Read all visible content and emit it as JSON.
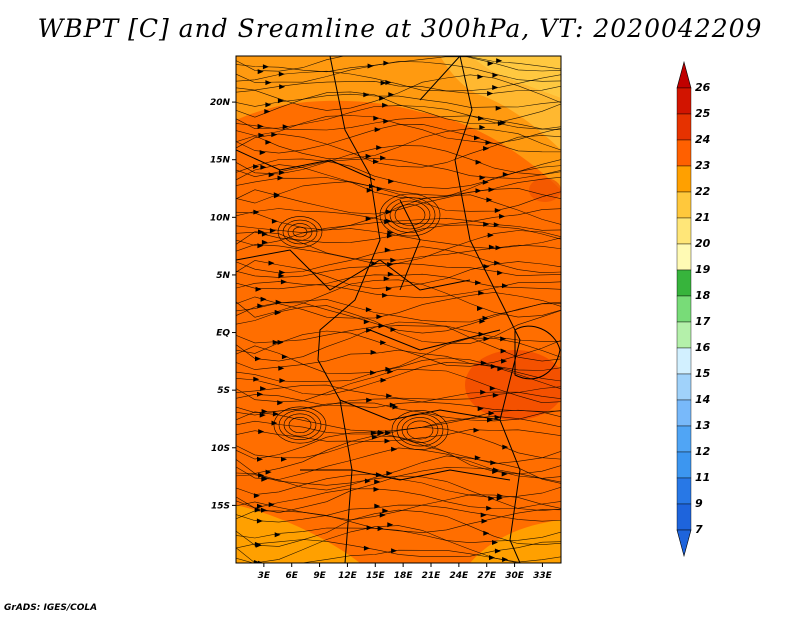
{
  "title": "WBPT [C] and Sreamline at 300hPa, VT: 2020042209",
  "credit": "GrADS: IGES/COLA",
  "chart_data": {
    "type": "heatmap",
    "title": "WBPT [C] and Sreamline at 300hPa, VT: 2020042209",
    "variable": "Wet-bulb potential temperature",
    "units": "C",
    "level": "300hPa",
    "valid_time": "2020042209",
    "overlay": "streamlines",
    "lon_range": [
      0,
      35
    ],
    "lat_range": [
      -20,
      24
    ],
    "x_ticks": [
      {
        "label": "3E",
        "lon": 3
      },
      {
        "label": "6E",
        "lon": 6
      },
      {
        "label": "9E",
        "lon": 9
      },
      {
        "label": "12E",
        "lon": 12
      },
      {
        "label": "15E",
        "lon": 15
      },
      {
        "label": "18E",
        "lon": 18
      },
      {
        "label": "21E",
        "lon": 21
      },
      {
        "label": "24E",
        "lon": 24
      },
      {
        "label": "27E",
        "lon": 27
      },
      {
        "label": "30E",
        "lon": 30
      },
      {
        "label": "33E",
        "lon": 33
      }
    ],
    "y_ticks": [
      {
        "label": "20N",
        "lat": 20
      },
      {
        "label": "15N",
        "lat": 15
      },
      {
        "label": "10N",
        "lat": 10
      },
      {
        "label": "5N",
        "lat": 5
      },
      {
        "label": "EQ",
        "lat": 0
      },
      {
        "label": "5S",
        "lat": -5
      },
      {
        "label": "10S",
        "lat": -10
      },
      {
        "label": "15S",
        "lat": -15
      }
    ],
    "colorbar": {
      "labels": [
        "7",
        "9",
        "11",
        "12",
        "13",
        "14",
        "15",
        "16",
        "17",
        "18",
        "19",
        "20",
        "21",
        "22",
        "23",
        "24",
        "25",
        "26"
      ],
      "colors": [
        "#1e64dc",
        "#2878e6",
        "#3c96f0",
        "#50a5f5",
        "#78b9fa",
        "#a0d2fa",
        "#d2f0ff",
        "#b4f0aa",
        "#78dc78",
        "#37b43c",
        "#fffab4",
        "#ffe678",
        "#ffc83c",
        "#ffa000",
        "#ff6000",
        "#e63200",
        "#d21400",
        "#c00000"
      ]
    },
    "field_regions": [
      {
        "region": "northern band",
        "value": 21
      },
      {
        "region": "northeast corner",
        "value": 20
      },
      {
        "region": "northeast interior",
        "value": 22
      },
      {
        "region": "central basin",
        "value": 23
      },
      {
        "region": "east Africa highlands",
        "value": 24
      },
      {
        "region": "southern band",
        "value": 21
      }
    ]
  }
}
